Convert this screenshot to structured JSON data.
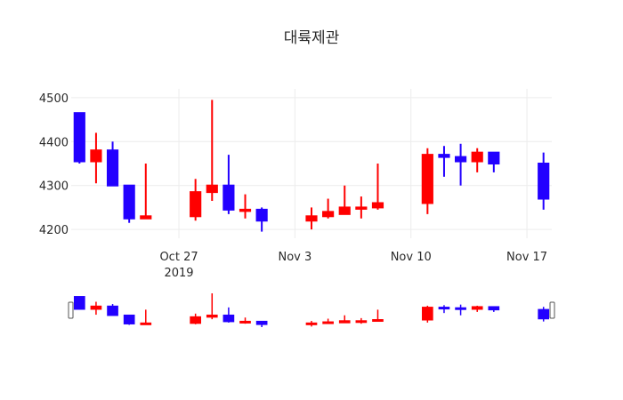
{
  "chart_data": {
    "type": "candlestick",
    "title": "대륙제관",
    "xlabel": "",
    "ylabel": "",
    "ylim": [
      4180,
      4520
    ],
    "xlim": [
      "2019-10-21",
      "2019-11-18"
    ],
    "yticks": [
      4200,
      4300,
      4400,
      4500
    ],
    "xticks": [
      {
        "date": "2019-10-27",
        "label": "Oct 27",
        "sublabel": "2019"
      },
      {
        "date": "2019-11-03",
        "label": "Nov 3",
        "sublabel": ""
      },
      {
        "date": "2019-11-10",
        "label": "Nov 10",
        "sublabel": ""
      },
      {
        "date": "2019-11-17",
        "label": "Nov 17",
        "sublabel": ""
      }
    ],
    "increasing_color": "#ff0000",
    "decreasing_color": "#2200ff",
    "grid": true,
    "legend": false,
    "rangeslider": true,
    "series": [
      {
        "x": [
          "2019-10-21",
          "2019-10-22",
          "2019-10-23",
          "2019-10-24",
          "2019-10-25",
          "2019-10-28",
          "2019-10-29",
          "2019-10-30",
          "2019-10-31",
          "2019-11-01",
          "2019-11-04",
          "2019-11-05",
          "2019-11-06",
          "2019-11-07",
          "2019-11-08",
          "2019-11-11",
          "2019-11-12",
          "2019-11-13",
          "2019-11-14",
          "2019-11-15",
          "2019-11-18"
        ],
        "open": [
          4465,
          4355,
          4380,
          4300,
          4225,
          4230,
          4285,
          4300,
          4245,
          4245,
          4220,
          4230,
          4235,
          4250,
          4250,
          4260,
          4370,
          4365,
          4355,
          4375,
          4350
        ],
        "high": [
          4465,
          4420,
          4400,
          4300,
          4350,
          4315,
          4495,
          4370,
          4280,
          4250,
          4250,
          4270,
          4300,
          4275,
          4350,
          4385,
          4390,
          4395,
          4385,
          4375,
          4375
        ],
        "low": [
          4350,
          4305,
          4300,
          4215,
          4225,
          4220,
          4265,
          4235,
          4225,
          4195,
          4200,
          4225,
          4235,
          4225,
          4245,
          4235,
          4320,
          4300,
          4330,
          4330,
          4245
        ],
        "close": [
          4355,
          4380,
          4300,
          4225,
          4230,
          4285,
          4300,
          4245,
          4245,
          4220,
          4230,
          4240,
          4250,
          4250,
          4260,
          4370,
          4365,
          4355,
          4375,
          4350,
          4270
        ]
      }
    ]
  }
}
